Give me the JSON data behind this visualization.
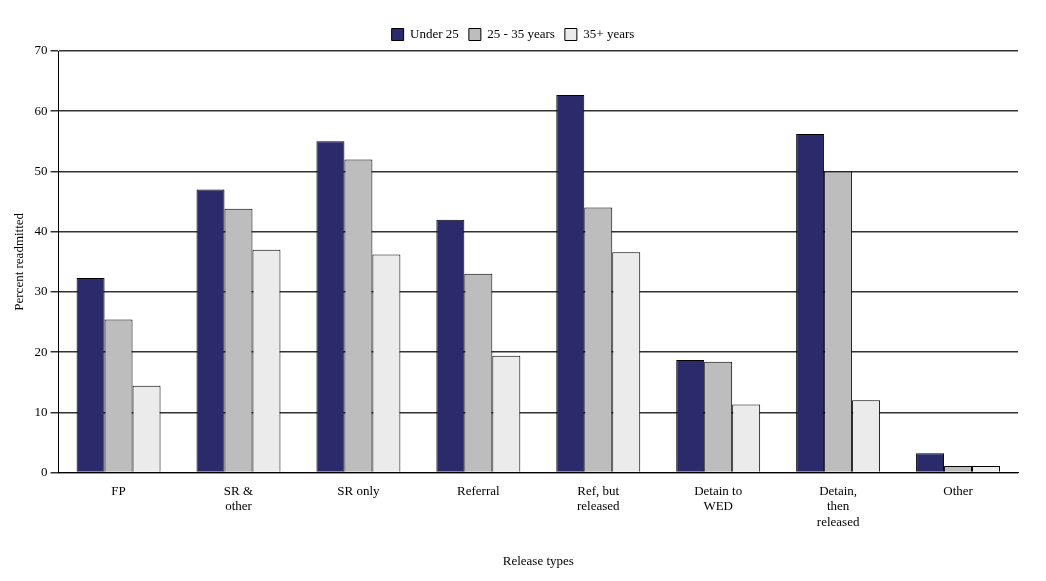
{
  "chart_data": {
    "type": "bar",
    "xlabel": "Release types",
    "ylabel": "Percent readmitted",
    "categories": [
      "FP",
      "SR & other",
      "SR only",
      "Referral",
      "Ref, but released",
      "Detain to WED",
      "Detain, then released",
      "Other"
    ],
    "series": [
      {
        "name": "Under 25",
        "color": "#2b2b6b",
        "values": [
          32.3,
          47,
          55,
          42,
          62.7,
          18.7,
          56.2,
          3.2
        ]
      },
      {
        "name": "25 - 35 years",
        "color": "#bdbdbd",
        "values": [
          25.4,
          43.8,
          52,
          33,
          44,
          18.4,
          50,
          1.1
        ]
      },
      {
        "name": "35+ years",
        "color": "#ebebeb",
        "values": [
          14.4,
          37,
          36.2,
          19.4,
          36.6,
          11.3,
          12,
          1.1
        ]
      }
    ],
    "ylim": [
      0,
      70
    ],
    "yticks": [
      0,
      10,
      20,
      30,
      40,
      50,
      60,
      70
    ],
    "grid": "y",
    "legend": "top"
  }
}
